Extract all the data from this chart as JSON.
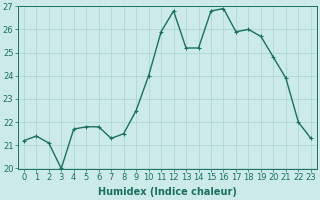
{
  "x": [
    0,
    1,
    2,
    3,
    4,
    5,
    6,
    7,
    8,
    9,
    10,
    11,
    12,
    13,
    14,
    15,
    16,
    17,
    18,
    19,
    20,
    21,
    22,
    23
  ],
  "y": [
    21.2,
    21.4,
    21.1,
    20.0,
    21.7,
    21.8,
    21.8,
    21.3,
    21.5,
    22.5,
    24.0,
    25.9,
    26.8,
    25.2,
    25.2,
    26.8,
    26.9,
    25.9,
    26.0,
    25.7,
    24.8,
    23.9,
    22.0,
    21.3
  ],
  "line_color": "#1a7060",
  "marker": "+",
  "markersize": 3,
  "linewidth": 1.0,
  "bg_color": "#cceae8",
  "grid_color": "#aad4d0",
  "xlabel": "Humidex (Indice chaleur)",
  "ylim": [
    20,
    27
  ],
  "xlim": [
    -0.5,
    23.5
  ],
  "yticks": [
    20,
    21,
    22,
    23,
    24,
    25,
    26,
    27
  ],
  "xticks": [
    0,
    1,
    2,
    3,
    4,
    5,
    6,
    7,
    8,
    9,
    10,
    11,
    12,
    13,
    14,
    15,
    16,
    17,
    18,
    19,
    20,
    21,
    22,
    23
  ],
  "tick_color": "#1a7060",
  "label_color": "#1a7060",
  "font_size": 6,
  "xlabel_fontsize": 7
}
